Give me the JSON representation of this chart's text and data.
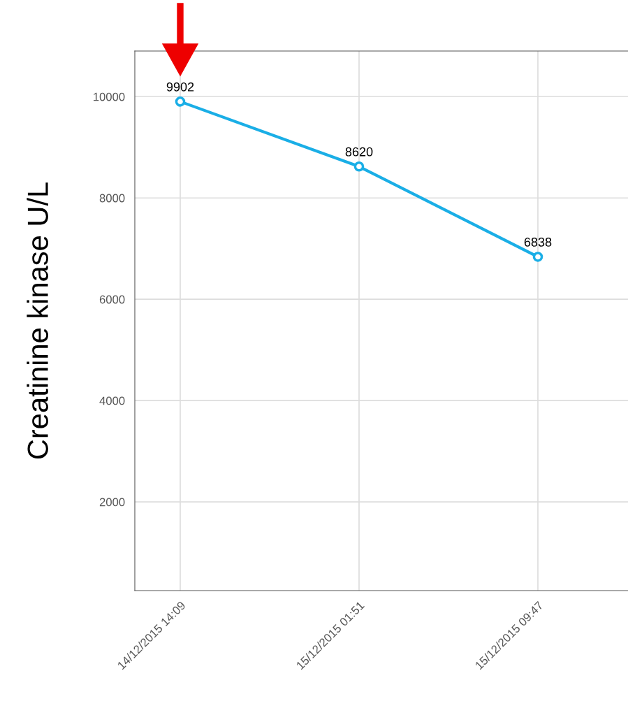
{
  "chart_data": {
    "type": "line",
    "ylabel": "Creatinine kinase U/L",
    "categories": [
      "14/12/2015 14:09",
      "15/12/2015 01:51",
      "15/12/2015 09:47"
    ],
    "series": [
      {
        "color": "#1aaee6",
        "values": [
          9902,
          8620,
          6838
        ]
      }
    ],
    "data_labels": true,
    "ylim": [
      250,
      10900
    ],
    "yticks": [
      2000,
      4000,
      6000,
      8000,
      10000
    ],
    "grid": true,
    "marker": "circle",
    "line_style": "solid"
  }
}
